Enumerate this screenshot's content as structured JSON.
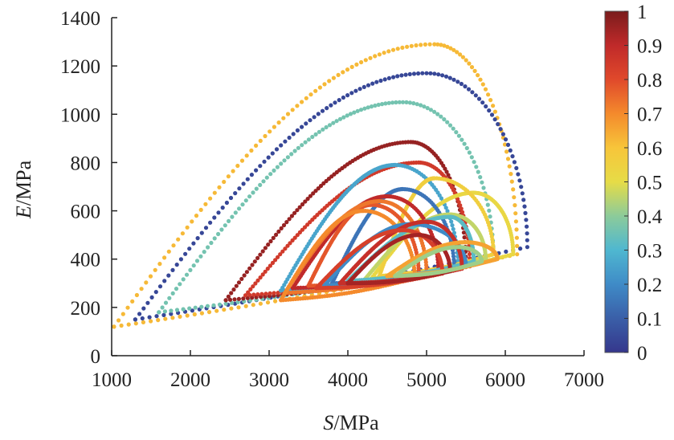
{
  "chart_data": {
    "type": "scatter",
    "title": "",
    "xlabel": {
      "symbol": "S",
      "unit": "/MPa"
    },
    "ylabel": {
      "symbol": "E",
      "unit": "/MPa"
    },
    "xlim": [
      1000,
      7000
    ],
    "ylim": [
      0,
      1400
    ],
    "xticks": [
      "1000",
      "2000",
      "3000",
      "4000",
      "5000",
      "6000",
      "7000"
    ],
    "yticks": [
      "0",
      "200",
      "400",
      "600",
      "800",
      "1000",
      "1200",
      "1400"
    ],
    "grid": false,
    "colorbar": {
      "range": [
        0,
        1
      ],
      "ticks": [
        "0",
        "0.1",
        "0.2",
        "0.3",
        "0.4",
        "0.5",
        "0.6",
        "0.7",
        "0.8",
        "0.9",
        "1"
      ],
      "colors": [
        "#35378c",
        "#3a5fa8",
        "#3f8bc7",
        "#4fb7d0",
        "#8ccb9a",
        "#e6dc47",
        "#f7c53a",
        "#f48a2c",
        "#e0492b",
        "#c02a2a",
        "#7a1c1c"
      ]
    },
    "series": [
      {
        "c": 0.62,
        "s_start": 1030,
        "s_peak": 5100,
        "s_end": 6150,
        "e_start": 120,
        "e_peak": 1290,
        "e_end": 420
      },
      {
        "c": 0.04,
        "s_start": 1300,
        "s_peak": 5000,
        "s_end": 6280,
        "e_start": 150,
        "e_peak": 1170,
        "e_end": 450
      },
      {
        "c": 0.36,
        "s_start": 1600,
        "s_peak": 4700,
        "s_end": 5850,
        "e_start": 180,
        "e_peak": 1050,
        "e_end": 400
      },
      {
        "c": 0.96,
        "s_start": 2450,
        "s_peak": 4800,
        "s_end": 5500,
        "e_start": 230,
        "e_peak": 885,
        "e_end": 370
      },
      {
        "c": 0.85,
        "s_start": 2700,
        "s_peak": 4900,
        "s_end": 5550,
        "e_start": 250,
        "e_peak": 800,
        "e_end": 370
      },
      {
        "c": 0.26,
        "s_start": 3150,
        "s_peak": 4600,
        "s_end": 5400,
        "e_start": 270,
        "e_peak": 790,
        "e_end": 360
      },
      {
        "c": 0.52,
        "s_start": 4300,
        "s_peak": 5600,
        "s_end": 6100,
        "e_start": 320,
        "e_peak": 675,
        "e_end": 420
      },
      {
        "c": 0.56,
        "s_start": 4400,
        "s_peak": 5100,
        "s_end": 5850,
        "e_start": 330,
        "e_peak": 735,
        "e_end": 420
      },
      {
        "c": 0.15,
        "s_start": 3800,
        "s_peak": 4700,
        "s_end": 5350,
        "e_start": 300,
        "e_peak": 690,
        "e_end": 360
      },
      {
        "c": 0.9,
        "s_start": 3300,
        "s_peak": 4500,
        "s_end": 5150,
        "e_start": 280,
        "e_peak": 660,
        "e_end": 350
      },
      {
        "c": 0.78,
        "s_start": 3500,
        "s_peak": 4300,
        "s_end": 4900,
        "e_start": 290,
        "e_peak": 625,
        "e_end": 340
      },
      {
        "c": 0.73,
        "s_start": 3200,
        "s_peak": 4400,
        "s_end": 5000,
        "e_start": 260,
        "e_peak": 640,
        "e_end": 340
      },
      {
        "c": 0.7,
        "s_start": 3150,
        "s_peak": 4200,
        "s_end": 4850,
        "e_start": 230,
        "e_peak": 600,
        "e_end": 320
      },
      {
        "c": 0.46,
        "s_start": 4200,
        "s_peak": 5300,
        "s_end": 5750,
        "e_start": 310,
        "e_peak": 585,
        "e_end": 400
      },
      {
        "c": 0.32,
        "s_start": 4000,
        "s_peak": 5300,
        "s_end": 5600,
        "e_start": 310,
        "e_peak": 575,
        "e_end": 390
      },
      {
        "c": 0.2,
        "s_start": 3700,
        "s_peak": 4800,
        "s_end": 5500,
        "e_start": 290,
        "e_peak": 545,
        "e_end": 370
      },
      {
        "c": 0.88,
        "s_start": 3900,
        "s_peak": 5000,
        "s_end": 5450,
        "e_start": 300,
        "e_peak": 555,
        "e_end": 360
      },
      {
        "c": 0.83,
        "s_start": 3600,
        "s_peak": 4700,
        "s_end": 5200,
        "e_start": 280,
        "e_peak": 520,
        "e_end": 340
      },
      {
        "c": 0.94,
        "s_start": 4000,
        "s_peak": 4900,
        "s_end": 5300,
        "e_start": 300,
        "e_peak": 500,
        "e_end": 350
      },
      {
        "c": 0.66,
        "s_start": 4500,
        "s_peak": 5500,
        "s_end": 5900,
        "e_start": 330,
        "e_peak": 470,
        "e_end": 400
      },
      {
        "c": 0.42,
        "s_start": 4600,
        "s_peak": 5400,
        "s_end": 5700,
        "e_start": 330,
        "e_peak": 450,
        "e_end": 390
      }
    ]
  }
}
